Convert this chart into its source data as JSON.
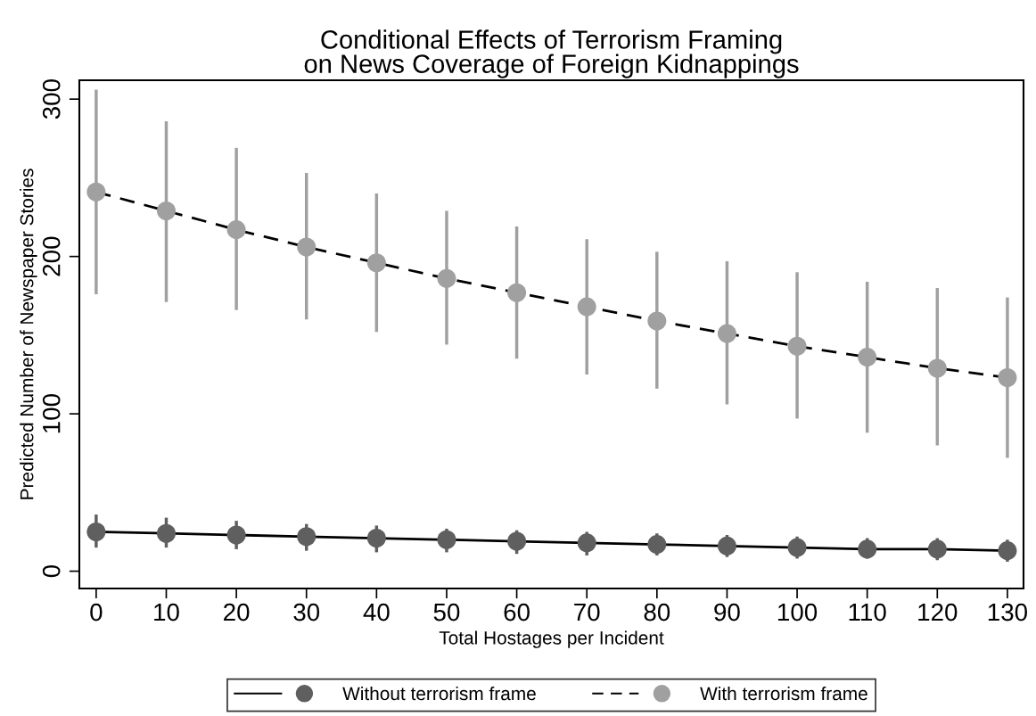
{
  "chart_data": {
    "type": "line",
    "title": "Conditional Effects of Terrorism Framing\non News Coverage of Foreign Kidnappings",
    "xlabel": "Total Hostages per Incident",
    "ylabel": "Predicted Number of Newspaper Stories",
    "x": [
      0,
      10,
      20,
      30,
      40,
      50,
      60,
      70,
      80,
      90,
      100,
      110,
      120,
      130
    ],
    "series": [
      {
        "name": "Without terrorism frame",
        "color": "#5f5f5f",
        "line_style": "solid",
        "values": [
          25,
          24,
          23,
          22,
          21,
          20,
          19,
          18,
          17,
          16,
          15,
          14,
          14,
          13
        ],
        "errors": [
          [
            15,
            36
          ],
          [
            15,
            34
          ],
          [
            14,
            32
          ],
          [
            13,
            30
          ],
          [
            12,
            29
          ],
          [
            12,
            27
          ],
          [
            11,
            26
          ],
          [
            10,
            25
          ],
          [
            10,
            24
          ],
          [
            9,
            23
          ],
          [
            8,
            22
          ],
          [
            8,
            21
          ],
          [
            7,
            21
          ],
          [
            6,
            20
          ]
        ]
      },
      {
        "name": "With terrorism frame",
        "color": "#a0a0a0",
        "line_style": "dashed",
        "values": [
          241,
          229,
          217,
          206,
          196,
          186,
          177,
          168,
          159,
          151,
          143,
          136,
          129,
          123
        ],
        "errors": [
          [
            176,
            306
          ],
          [
            171,
            286
          ],
          [
            166,
            269
          ],
          [
            160,
            253
          ],
          [
            152,
            240
          ],
          [
            144,
            229
          ],
          [
            135,
            219
          ],
          [
            125,
            211
          ],
          [
            116,
            203
          ],
          [
            106,
            197
          ],
          [
            97,
            190
          ],
          [
            88,
            184
          ],
          [
            80,
            180
          ],
          [
            72,
            174
          ]
        ]
      }
    ],
    "marker": "circle",
    "xlim": [
      -2.4,
      132.3
    ],
    "ylim": [
      -11,
      312
    ],
    "xticks": [
      0,
      10,
      20,
      30,
      40,
      50,
      60,
      70,
      80,
      90,
      100,
      110,
      120,
      130
    ],
    "yticks": [
      0,
      100,
      200,
      300
    ],
    "grid": false,
    "legend": "bottom"
  }
}
